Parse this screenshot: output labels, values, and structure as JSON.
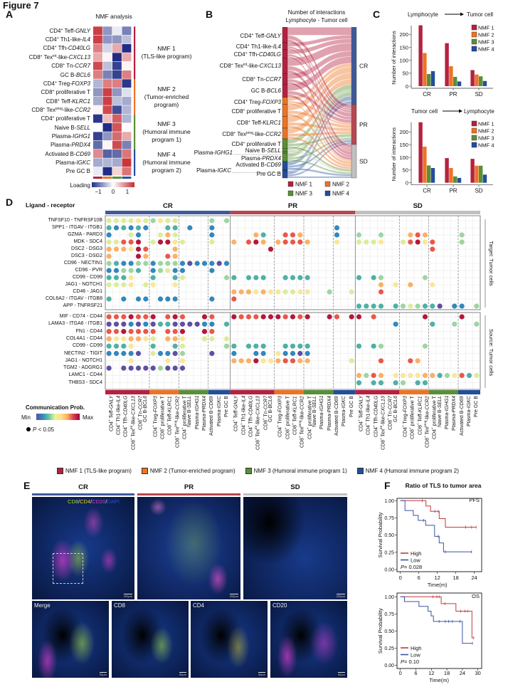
{
  "figure_title": "Figure 7",
  "letters": {
    "a": "A",
    "b": "B",
    "c": "C",
    "d": "D",
    "e": "E",
    "f": "F"
  },
  "colors": {
    "nmf1": "#b5213f",
    "nmf2": "#ec7424",
    "nmf3": "#5a8f37",
    "nmf4": "#234e9c",
    "cr": "#3f5a9a",
    "pr": "#b8474f",
    "sd": "#c0c0c0",
    "heat_low": "#1f2d86",
    "heat_high": "#c62a2f"
  },
  "cell_types": [
    [
      [
        "CD4",
        ""
      ],
      [
        "+",
        "sup"
      ],
      [
        " Teff-",
        ""
      ],
      [
        "GNLY",
        "i"
      ]
    ],
    [
      [
        "CD4",
        ""
      ],
      [
        "+",
        "sup"
      ],
      [
        " Th1-like-",
        ""
      ],
      [
        "IL4",
        "i"
      ]
    ],
    [
      [
        "CD4",
        ""
      ],
      [
        "+",
        "sup"
      ],
      [
        " Tfh-",
        ""
      ],
      [
        "CD40LG",
        "i"
      ]
    ],
    [
      [
        "CD8",
        ""
      ],
      [
        "+",
        "sup"
      ],
      [
        " Tex",
        ""
      ],
      [
        "int",
        "sup"
      ],
      [
        "-like-",
        ""
      ],
      [
        "CXCL13",
        "i"
      ]
    ],
    [
      [
        "CD8",
        ""
      ],
      [
        "+",
        "sup"
      ],
      [
        " Tn-",
        ""
      ],
      [
        "CCR7",
        "i"
      ]
    ],
    [
      [
        "GC B-",
        ""
      ],
      [
        "BCL6",
        "i"
      ]
    ],
    [
      [
        "CD4",
        ""
      ],
      [
        "+",
        "sup"
      ],
      [
        " Treg-",
        ""
      ],
      [
        "FOXP3",
        "i"
      ]
    ],
    [
      [
        "CD8",
        ""
      ],
      [
        "+",
        "sup"
      ],
      [
        " proliferative T",
        ""
      ]
    ],
    [
      [
        "CD8",
        ""
      ],
      [
        "+",
        "sup"
      ],
      [
        " Teff-",
        ""
      ],
      [
        "KLRC1",
        "i"
      ]
    ],
    [
      [
        "CD8",
        ""
      ],
      [
        "+",
        "sup"
      ],
      [
        " Tex",
        ""
      ],
      [
        "prog",
        "sup"
      ],
      [
        "-like-",
        ""
      ],
      [
        "CCR2",
        "i"
      ]
    ],
    [
      [
        "CD4",
        ""
      ],
      [
        "+",
        "sup"
      ],
      [
        " proliferative T",
        ""
      ]
    ],
    [
      [
        "Naive B-",
        ""
      ],
      [
        "SELL",
        "i"
      ]
    ],
    [
      [
        "Plasma-",
        ""
      ],
      [
        "IGHG1",
        "i"
      ]
    ],
    [
      [
        "Plasma-",
        ""
      ],
      [
        "PRDX4",
        "i"
      ]
    ],
    [
      [
        "Activated B-",
        ""
      ],
      [
        "CD69",
        "i"
      ]
    ],
    [
      [
        "Plasma-",
        ""
      ],
      [
        "IGKC",
        "i"
      ]
    ],
    [
      [
        "Pre GC B",
        ""
      ]
    ]
  ],
  "cell_nmf": [
    1,
    1,
    1,
    1,
    1,
    1,
    2,
    2,
    2,
    2,
    3,
    3,
    3,
    3,
    4,
    4,
    4
  ],
  "panel_a": {
    "title": "NMF analysis",
    "programs": [
      {
        "lines": [
          "NMF 1",
          "(TLS-like program)"
        ]
      },
      {
        "lines": [
          "NMF 2",
          "(Tumor-enriched",
          "program)"
        ]
      },
      {
        "lines": [
          "NMF 3",
          "(Humoral immune",
          "program 1)"
        ]
      },
      {
        "lines": [
          "NMF 4",
          "(Humoral immune",
          "program 2)"
        ]
      }
    ],
    "loading_label": "Loading",
    "loading_ticks": [
      "−1",
      "0",
      "1"
    ],
    "values": [
      [
        0.9,
        -0.5,
        -0.1,
        -0.6
      ],
      [
        0.9,
        -0.5,
        -0.5,
        -0.3
      ],
      [
        0.6,
        -0.2,
        0.4,
        -1
      ],
      [
        0.4,
        0.05,
        -1,
        0.4
      ],
      [
        0.85,
        -0.3,
        -0.9,
        0.05
      ],
      [
        0.6,
        -0.6,
        -0.9,
        0.6
      ],
      [
        -0.35,
        0.6,
        0.6,
        -0.95
      ],
      [
        -0.5,
        0.9,
        -0.5,
        -0.15
      ],
      [
        -0.4,
        0.9,
        -0.3,
        -0.4
      ],
      [
        0.05,
        0.85,
        -0.85,
        -0.35
      ],
      [
        -0.95,
        0.3,
        0.75,
        -0.35
      ],
      [
        0,
        -1,
        0.8,
        0.02
      ],
      [
        -0.9,
        -0.5,
        0.7,
        0.4
      ],
      [
        -0.7,
        0.05,
        0.85,
        -0.6
      ],
      [
        0.55,
        -0.75,
        -0.7,
        0.65
      ],
      [
        -0.4,
        -0.35,
        -0.4,
        0.95
      ],
      [
        -0.1,
        -1,
        0.2,
        0.65
      ]
    ]
  },
  "panel_b": {
    "title_lines": [
      "Number of interactions",
      "Lymphocyte - Tumor cell"
    ],
    "targets": [
      "CR",
      "PR",
      "SD"
    ],
    "legend": [
      "NMF 1",
      "NMF 2",
      "NMF 3",
      "NMF 4"
    ]
  },
  "chart_data": [
    {
      "type": "bar",
      "panel": "C",
      "title_from": "Lymphocyte",
      "title_to": "Tumor cell",
      "categories": [
        "CR",
        "PR",
        "SD"
      ],
      "ylabel": "Number of interactions",
      "ylim": [
        0,
        240
      ],
      "yticks": [
        0,
        50,
        100,
        150,
        200
      ],
      "legend_position": "top-right",
      "series": [
        {
          "name": "NMF 1",
          "values": [
            235,
            166,
            62
          ]
        },
        {
          "name": "NMF 2",
          "values": [
            128,
            77,
            45
          ]
        },
        {
          "name": "NMF 3",
          "values": [
            47,
            36,
            38
          ]
        },
        {
          "name": "NMF 4",
          "values": [
            58,
            18,
            20
          ]
        }
      ]
    },
    {
      "type": "bar",
      "panel": "C",
      "title_from": "Tumor cell",
      "title_to": "Lymphocyte",
      "categories": [
        "CR",
        "PR",
        "SD"
      ],
      "ylabel": "Number of interactions",
      "ylim": [
        0,
        240
      ],
      "yticks": [
        0,
        50,
        100,
        150,
        200
      ],
      "legend_position": "top-right",
      "series": [
        {
          "name": "NMF 1",
          "values": [
            238,
            97,
            94
          ]
        },
        {
          "name": "NMF 2",
          "values": [
            142,
            58,
            67
          ]
        },
        {
          "name": "NMF 3",
          "values": [
            68,
            25,
            67
          ]
        },
        {
          "name": "NMF 4",
          "values": [
            58,
            19,
            32
          ]
        }
      ]
    },
    {
      "type": "line",
      "panel": "F",
      "title": "Ratio of TLS to tumor area",
      "label": "PFS",
      "xlabel": "Time(m)",
      "ylabel": "Survival Probability",
      "xlim": [
        0,
        24
      ],
      "xticks": [
        0,
        6,
        12,
        18,
        24
      ],
      "ylim": [
        0,
        1
      ],
      "yticks": [
        "0.00",
        "0.25",
        "0.50",
        "0.75",
        "1.00"
      ],
      "p_prefix": "P",
      "p_value": " = 0.028",
      "legend_position": "bottom-left",
      "series": [
        {
          "name": "High",
          "color": "#c0393f",
          "steps": [
            [
              0,
              1
            ],
            [
              8.3,
              0.923
            ],
            [
              9.8,
              0.846
            ],
            [
              12.6,
              0.74
            ],
            [
              14.6,
              0.615
            ],
            [
              24.6,
              0.615
            ]
          ],
          "censor": [
            [
              7.1,
              1
            ],
            [
              11.2,
              0.846
            ],
            [
              12.3,
              0.846
            ],
            [
              21.2,
              0.615
            ],
            [
              23.1,
              0.615
            ],
            [
              24.6,
              0.615
            ]
          ]
        },
        {
          "name": "Low",
          "color": "#3b55a0",
          "steps": [
            [
              0,
              1
            ],
            [
              1.5,
              0.857
            ],
            [
              4.2,
              0.786
            ],
            [
              5.8,
              0.714
            ],
            [
              8.2,
              0.643
            ],
            [
              11.1,
              0.482
            ],
            [
              12.6,
              0.386
            ],
            [
              14,
              0.257
            ],
            [
              23.1,
              0.257
            ]
          ],
          "censor": [
            [
              7.5,
              0.714
            ],
            [
              12.3,
              0.482
            ],
            [
              14.6,
              0.257
            ],
            [
              23.1,
              0.257
            ]
          ]
        }
      ]
    },
    {
      "type": "line",
      "panel": "F",
      "label": "OS",
      "xlabel": "Time(m)",
      "ylabel": "Survival Probability",
      "xlim": [
        0,
        30
      ],
      "xticks": [
        0,
        6,
        12,
        18,
        24,
        30
      ],
      "ylim": [
        0,
        1
      ],
      "yticks": [
        "0.00",
        "0.25",
        "0.50",
        "0.75",
        "1.00"
      ],
      "p_prefix": "P",
      "p_value": " = 0.10",
      "legend_position": "bottom-left",
      "series": [
        {
          "name": "High",
          "color": "#c0393f",
          "steps": [
            [
              0,
              1
            ],
            [
              15.8,
              0.9
            ],
            [
              21.5,
              0.79
            ],
            [
              27.7,
              0.4
            ],
            [
              28.4,
              0.4
            ]
          ],
          "censor": [
            [
              12.6,
              1
            ],
            [
              14.1,
              1
            ],
            [
              15,
              1
            ],
            [
              17.2,
              0.9
            ],
            [
              23.3,
              0.79
            ],
            [
              25,
              0.79
            ],
            [
              26,
              0.79
            ],
            [
              28.4,
              0.4
            ]
          ]
        },
        {
          "name": "Low",
          "color": "#3b55a0",
          "steps": [
            [
              0,
              1
            ],
            [
              1.6,
              0.93
            ],
            [
              7.2,
              0.86
            ],
            [
              10.7,
              0.79
            ],
            [
              11.9,
              0.72
            ],
            [
              12.8,
              0.64
            ],
            [
              24,
              0.32
            ],
            [
              27.9,
              0.32
            ]
          ],
          "censor": [
            [
              15,
              0.64
            ],
            [
              17.4,
              0.64
            ],
            [
              18.7,
              0.64
            ],
            [
              20.1,
              0.64
            ],
            [
              23.1,
              0.64
            ],
            [
              27.9,
              0.32
            ]
          ]
        }
      ]
    }
  ],
  "panel_d": {
    "header": "Ligand - receptor",
    "groups": [
      "CR",
      "PR",
      "SD"
    ],
    "side_labels": [
      "Target: Tumor cells",
      "Source: Tumor cells"
    ],
    "scale_colors": [
      "#5e4fa2",
      "#3288bd",
      "#4fb0a6",
      "#9fd5a0",
      "#dcec9c",
      "#f8e79a",
      "#fbb066",
      "#e8584a",
      "#b2183b"
    ],
    "upper": [
      {
        "pair": "TNFSF10 - TNFRSF10B",
        "cr": "5555654655....4.4",
        "pr": ".................",
        "sd": "................."
      },
      {
        "pair": "SPP1 - ITGAV - ITGB1",
        "cr": "323232..33.2..2..",
        "pr": "..............2..",
        "sd": "................."
      },
      {
        "pair": "GZMA - PARD3",
        "cr": "2..52..575....2..",
        "pr": "...73..887....2..",
        "sd": "4..4...787....4.."
      },
      {
        "pair": "MDK - SDC4",
        "cr": "55889.59965...5..",
        "pr": "7.897.78887...6..",
        "sd": "5556..58968...4.."
      },
      {
        "pair": "DSC2 - DSG3",
        "cr": "777698...7.......",
        "pr": ".....9...........",
        "sd": "..........8......"
      },
      {
        "pair": "DSC3 - DSG2",
        "cr": "7...97..87.......",
        "pr": ".................",
        "sd": "................."
      },
      {
        "pair": "CD96 - NECTIN1",
        "cr": "43224424442122212",
        "pr": ".................",
        "sd": "................."
      },
      {
        "pair": "CD96 - PVR",
        "cr": "22443.24522...2..",
        "pr": ".................",
        "sd": "................."
      },
      {
        "pair": "CD99 - CD99",
        "cr": "3336..3..35.....4",
        "pr": "3.333..3333......",
        "sd": "3.34.....4......."
      },
      {
        "pair": "JAG1 - NOTCH1",
        "cr": "5556.56..6.......",
        "pr": ".................",
        "sd": "...7.6.7..6......"
      },
      {
        "pair": "CD46 - JAG1",
        "cr": ".................",
        "pr": "77767665566..4..5",
        "sd": "...8............."
      },
      {
        "pair": "COL6A2 - ITGAV - ITGB8",
        "cr": "3.2.22.222....2..",
        "pr": "8................",
        "sd": "................."
      },
      {
        "pair": "APP - TNFRSF21",
        "cr": ".................",
        "pr": ".................",
        "sd": "3333.3454331.22.4"
      }
    ],
    "lower": [
      {
        "pair": "MIF - CD74 - CD44",
        "cr": "8889889.898..98..",
        "pr": "98889998989..98.9",
        "sd": "9.8......9....9.."
      },
      {
        "pair": "LAMA3 - ITGA6 - ITGB1",
        "cr": "111212133111122.3",
        "pr": ".................",
        "sd": ".....2....3..4..4"
      },
      {
        "pair": "FN1 - CD44",
        "cr": "8898888.889..98..",
        "pr": ".................",
        "sd": "................."
      },
      {
        "pair": "COL4A1 - CD44",
        "cr": "7667765.776..55.5",
        "pr": ".................",
        "sd": "................."
      },
      {
        "pair": "CD99 - CD99",
        "cr": "3336..3..35.....4",
        "pr": "3.333..3333......",
        "sd": "3.34.....4......."
      },
      {
        "pair": "NECTIN2 - TIGIT",
        "cr": "22221.52214...1..",
        "pr": "2..22.62212......",
        "sd": "................."
      },
      {
        "pair": "JAG1 - NOTCH1",
        "cr": "...6....6.6......",
        "pr": "77796678877.....5",
        "sd": "...8...87........"
      },
      {
        "pair": "TGM2 - ADGRG1",
        "cr": "1.111114111......",
        "pr": ".................",
        "sd": "................."
      },
      {
        "pair": "LAMC1 - CD44",
        "cr": ".................",
        "pr": ".................",
        "sd": "7487.666677346835"
      },
      {
        "pair": "THBS3 - SDC4",
        "cr": ".................",
        "pr": ".................",
        "sd": "3.33.34.33......."
      }
    ],
    "legend": {
      "title": "Communication Prob.",
      "min": "Min",
      "max": "Max",
      "p_italic": "P",
      "p_rest": " < 0.05"
    }
  },
  "nmf_legend": [
    "NMF 1 (TLS-like program)",
    "NMF 2 (Tumor-enriched program)",
    "NMF 3 (Humoral immune program 1)",
    "NMF 4 (Humoral immune program 2)"
  ],
  "panel_e": {
    "groups": [
      "CR",
      "PR",
      "SD"
    ],
    "stain_legend": [
      {
        "t": "CD8",
        "color": "#a8d92c"
      },
      {
        "t": "/",
        "color": "#dddddd"
      },
      {
        "t": "CD4",
        "color": "#f2d21a"
      },
      {
        "t": "/",
        "color": "#dddddd"
      },
      {
        "t": "CD20",
        "color": "#d23fc0"
      },
      {
        "t": "/",
        "color": "#dddddd"
      },
      {
        "t": "DAPI",
        "color": "#2a4fd6"
      }
    ],
    "zoom_labels": [
      "Merge",
      "CD8",
      "CD4",
      "CD20"
    ],
    "scale_top": "200μm",
    "scale_bottom": "50μm"
  }
}
